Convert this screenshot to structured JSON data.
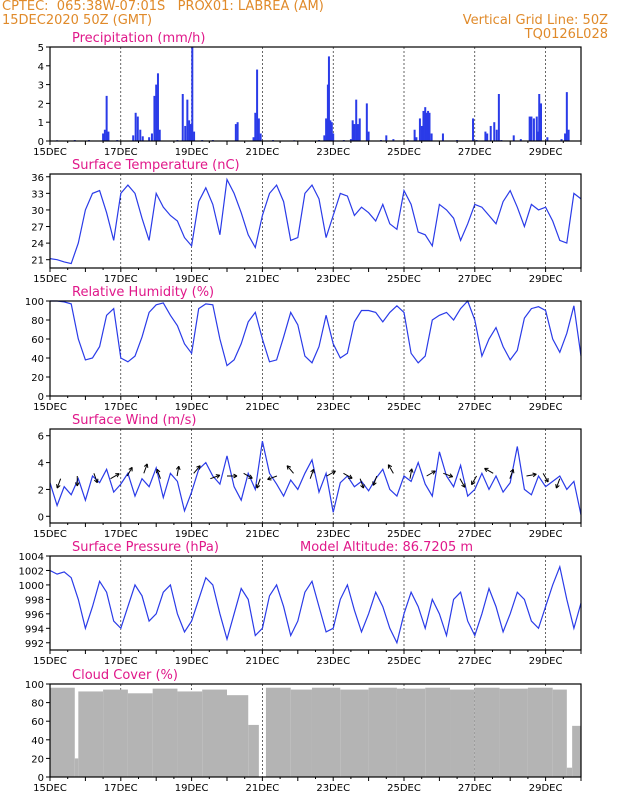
{
  "header": {
    "line1_left": "CPTEC:  065:38W-07:01S   PROX01: LABREA (AM)",
    "line2_left": "15DEC2020 50Z (GMT)",
    "line2_right": "Vertical Grid Line: 50Z",
    "line3_right": "TQ0126L028"
  },
  "colors": {
    "header": "#e08a2a",
    "title": "#e0188a",
    "series": "#2a3be8",
    "cloud": "#b4b4b4"
  },
  "extra_label": "Model Altitude: 86.7205 m",
  "x_ticks": [
    "15DEC",
    "17DEC",
    "19DEC",
    "21DEC",
    "23DEC",
    "25DEC",
    "27DEC",
    "29DEC"
  ],
  "chart_data": [
    {
      "type": "bar",
      "title": "Precipitation (mm/h)",
      "ylim": [
        0,
        5
      ],
      "yticks": [
        0,
        1,
        2,
        3,
        4,
        5
      ],
      "x_days": [
        15,
        30
      ],
      "bars": [
        [
          15.2,
          0.04
        ],
        [
          15.7,
          0.05
        ],
        [
          16.1,
          0.05
        ],
        [
          16.5,
          0.4
        ],
        [
          16.55,
          0.6
        ],
        [
          16.6,
          2.4
        ],
        [
          16.65,
          0.5
        ],
        [
          16.9,
          0.05
        ],
        [
          17.35,
          0.3
        ],
        [
          17.42,
          1.5
        ],
        [
          17.48,
          1.3
        ],
        [
          17.55,
          0.6
        ],
        [
          17.62,
          0.25
        ],
        [
          17.8,
          0.2
        ],
        [
          17.88,
          0.4
        ],
        [
          17.95,
          2.4
        ],
        [
          18.0,
          3.0
        ],
        [
          18.05,
          3.6
        ],
        [
          18.1,
          0.6
        ],
        [
          18.6,
          0.05
        ],
        [
          18.75,
          2.5
        ],
        [
          18.82,
          0.8
        ],
        [
          18.88,
          2.2
        ],
        [
          18.93,
          1.1
        ],
        [
          18.97,
          0.9
        ],
        [
          19.02,
          5.0
        ],
        [
          19.07,
          0.5
        ],
        [
          19.3,
          0.05
        ],
        [
          19.6,
          0.05
        ],
        [
          20.25,
          0.9
        ],
        [
          20.3,
          1.0
        ],
        [
          20.75,
          0.2
        ],
        [
          20.8,
          1.5
        ],
        [
          20.85,
          3.8
        ],
        [
          20.9,
          1.2
        ],
        [
          20.95,
          0.4
        ],
        [
          21.3,
          0.05
        ],
        [
          21.9,
          0.04
        ],
        [
          22.6,
          0.05
        ],
        [
          22.75,
          0.3
        ],
        [
          22.8,
          1.2
        ],
        [
          22.85,
          3.0
        ],
        [
          22.88,
          4.5
        ],
        [
          22.92,
          1.1
        ],
        [
          22.96,
          1.0
        ],
        [
          23.0,
          0.4
        ],
        [
          23.3,
          0.05
        ],
        [
          23.5,
          0.1
        ],
        [
          23.55,
          1.1
        ],
        [
          23.6,
          0.9
        ],
        [
          23.65,
          2.2
        ],
        [
          23.7,
          0.9
        ],
        [
          23.75,
          1.2
        ],
        [
          23.95,
          2.0
        ],
        [
          24.0,
          0.5
        ],
        [
          24.35,
          0.05
        ],
        [
          24.5,
          0.3
        ],
        [
          24.7,
          0.1
        ],
        [
          25.1,
          0.05
        ],
        [
          25.3,
          0.6
        ],
        [
          25.35,
          0.2
        ],
        [
          25.45,
          1.2
        ],
        [
          25.5,
          0.8
        ],
        [
          25.55,
          1.6
        ],
        [
          25.6,
          1.8
        ],
        [
          25.64,
          1.5
        ],
        [
          25.68,
          1.6
        ],
        [
          25.72,
          1.5
        ],
        [
          25.78,
          0.4
        ],
        [
          26.1,
          0.4
        ],
        [
          26.5,
          0.05
        ],
        [
          26.95,
          1.2
        ],
        [
          27.05,
          0.05
        ],
        [
          27.3,
          0.5
        ],
        [
          27.35,
          0.4
        ],
        [
          27.45,
          0.8
        ],
        [
          27.55,
          1.0
        ],
        [
          27.62,
          0.6
        ],
        [
          27.68,
          2.5
        ],
        [
          27.75,
          0.05
        ],
        [
          28.1,
          0.3
        ],
        [
          28.3,
          0.1
        ],
        [
          28.55,
          1.3
        ],
        [
          28.6,
          1.3
        ],
        [
          28.67,
          1.2
        ],
        [
          28.75,
          1.3
        ],
        [
          28.8,
          0.5
        ],
        [
          28.82,
          2.5
        ],
        [
          28.87,
          2.0
        ],
        [
          29.05,
          0.2
        ],
        [
          29.45,
          0.1
        ],
        [
          29.55,
          0.4
        ],
        [
          29.6,
          2.6
        ],
        [
          29.65,
          0.6
        ]
      ]
    },
    {
      "type": "line",
      "title": "Surface Temperature (nC)",
      "ylim": [
        19.5,
        36.5
      ],
      "yticks": [
        21,
        24,
        27,
        30,
        33,
        36
      ],
      "x": [
        15.0,
        15.2,
        15.4,
        15.6,
        15.8,
        16.0,
        16.2,
        16.4,
        16.6,
        16.8,
        17.0,
        17.2,
        17.4,
        17.6,
        17.8,
        18.0,
        18.2,
        18.4,
        18.6,
        18.8,
        19.0,
        19.2,
        19.4,
        19.6,
        19.8,
        20.0,
        20.2,
        20.4,
        20.6,
        20.8,
        21.0,
        21.2,
        21.4,
        21.6,
        21.8,
        22.0,
        22.2,
        22.4,
        22.6,
        22.8,
        23.0,
        23.2,
        23.4,
        23.6,
        23.8,
        24.0,
        24.2,
        24.4,
        24.6,
        24.8,
        25.0,
        25.2,
        25.4,
        25.6,
        25.8,
        26.0,
        26.2,
        26.4,
        26.6,
        26.8,
        27.0,
        27.2,
        27.4,
        27.6,
        27.8,
        28.0,
        28.2,
        28.4,
        28.6,
        28.8,
        29.0,
        29.2,
        29.4,
        29.6,
        29.8,
        30.0
      ],
      "y": [
        21.2,
        21.0,
        20.6,
        20.3,
        24.0,
        30.0,
        33.0,
        33.5,
        29.5,
        24.5,
        33.0,
        34.5,
        33.0,
        28.5,
        24.5,
        33.0,
        30.5,
        29.0,
        28.0,
        25.0,
        23.5,
        31.5,
        34.0,
        31.0,
        25.5,
        35.5,
        33.0,
        29.5,
        25.5,
        23.2,
        29.0,
        33.0,
        34.5,
        31.5,
        24.5,
        25.0,
        33.0,
        34.5,
        32.0,
        25.0,
        29.0,
        33.0,
        32.5,
        29.0,
        30.5,
        29.5,
        28.0,
        31.0,
        27.5,
        26.5,
        33.5,
        31.0,
        26.0,
        25.5,
        23.5,
        31.0,
        30.0,
        28.5,
        24.5,
        27.5,
        31.0,
        30.5,
        29.0,
        27.5,
        31.5,
        33.5,
        30.5,
        27.0,
        31.0,
        30.0,
        30.5,
        28.0,
        24.5,
        24.0,
        33.0,
        32.0
      ]
    },
    {
      "type": "line",
      "title": "Relative Humidity (%)",
      "ylim": [
        0,
        100
      ],
      "yticks": [
        0,
        20,
        40,
        60,
        80,
        100
      ],
      "x": [
        15.0,
        15.2,
        15.4,
        15.6,
        15.8,
        16.0,
        16.2,
        16.4,
        16.6,
        16.8,
        17.0,
        17.2,
        17.4,
        17.6,
        17.8,
        18.0,
        18.2,
        18.4,
        18.6,
        18.8,
        19.0,
        19.2,
        19.4,
        19.6,
        19.8,
        20.0,
        20.2,
        20.4,
        20.6,
        20.8,
        21.0,
        21.2,
        21.4,
        21.6,
        21.8,
        22.0,
        22.2,
        22.4,
        22.6,
        22.8,
        23.0,
        23.2,
        23.4,
        23.6,
        23.8,
        24.0,
        24.2,
        24.4,
        24.6,
        24.8,
        25.0,
        25.2,
        25.4,
        25.6,
        25.8,
        26.0,
        26.2,
        26.4,
        26.6,
        26.8,
        27.0,
        27.2,
        27.4,
        27.6,
        27.8,
        28.0,
        28.2,
        28.4,
        28.6,
        28.8,
        29.0,
        29.2,
        29.4,
        29.6,
        29.8,
        30.0
      ],
      "y": [
        100,
        100,
        99,
        97,
        60,
        38,
        40,
        52,
        85,
        92,
        40,
        36,
        42,
        62,
        88,
        96,
        98,
        85,
        74,
        55,
        45,
        92,
        97,
        96,
        60,
        32,
        38,
        55,
        78,
        88,
        60,
        36,
        38,
        62,
        88,
        75,
        42,
        35,
        52,
        85,
        55,
        40,
        45,
        78,
        90,
        90,
        88,
        78,
        88,
        95,
        88,
        45,
        35,
        42,
        80,
        85,
        88,
        80,
        92,
        100,
        80,
        42,
        60,
        72,
        52,
        38,
        48,
        82,
        92,
        94,
        90,
        60,
        46,
        66,
        95,
        42
      ]
    },
    {
      "type": "line",
      "title": "Surface Wind (m/s)",
      "ylim": [
        -0.5,
        6.5
      ],
      "yticks": [
        0,
        2,
        4,
        6
      ],
      "x": [
        15.0,
        15.2,
        15.4,
        15.6,
        15.8,
        16.0,
        16.2,
        16.4,
        16.6,
        16.8,
        17.0,
        17.2,
        17.4,
        17.6,
        17.8,
        18.0,
        18.2,
        18.4,
        18.6,
        18.8,
        19.0,
        19.2,
        19.4,
        19.6,
        19.8,
        20.0,
        20.2,
        20.4,
        20.6,
        20.8,
        21.0,
        21.2,
        21.4,
        21.6,
        21.8,
        22.0,
        22.2,
        22.4,
        22.6,
        22.8,
        23.0,
        23.2,
        23.4,
        23.6,
        23.8,
        24.0,
        24.2,
        24.4,
        24.6,
        24.8,
        25.0,
        25.2,
        25.4,
        25.6,
        25.8,
        26.0,
        26.2,
        26.4,
        26.6,
        26.8,
        27.0,
        27.2,
        27.4,
        27.6,
        27.8,
        28.0,
        28.2,
        28.4,
        28.6,
        28.8,
        29.0,
        29.2,
        29.4,
        29.6,
        29.8,
        30.0
      ],
      "y": [
        2.5,
        0.8,
        2.2,
        1.6,
        2.8,
        1.2,
        3.0,
        2.5,
        3.5,
        1.8,
        2.4,
        3.2,
        1.5,
        2.8,
        2.2,
        3.6,
        1.4,
        3.2,
        2.6,
        0.4,
        1.8,
        3.5,
        4.0,
        3.0,
        2.4,
        4.5,
        2.2,
        1.2,
        3.2,
        2.0,
        5.6,
        3.2,
        2.4,
        1.5,
        2.7,
        2.0,
        3.2,
        4.2,
        1.8,
        3.2,
        0.3,
        2.5,
        3.0,
        2.2,
        2.6,
        1.9,
        2.8,
        3.5,
        2.0,
        1.5,
        3.0,
        2.6,
        4.0,
        2.4,
        1.5,
        4.8,
        3.0,
        2.2,
        3.8,
        1.5,
        2.0,
        3.2,
        2.0,
        3.0,
        1.8,
        2.5,
        5.2,
        2.0,
        1.6,
        3.0,
        2.2,
        2.6,
        3.0,
        2.0,
        2.6,
        0.1
      ]
    },
    {
      "type": "line",
      "title": "Surface Pressure (hPa)",
      "ylim": [
        991,
        1004
      ],
      "yticks": [
        992,
        994,
        996,
        998,
        1000,
        1002,
        1004
      ],
      "x": [
        15.0,
        15.2,
        15.4,
        15.6,
        15.8,
        16.0,
        16.2,
        16.4,
        16.6,
        16.8,
        17.0,
        17.2,
        17.4,
        17.6,
        17.8,
        18.0,
        18.2,
        18.4,
        18.6,
        18.8,
        19.0,
        19.2,
        19.4,
        19.6,
        19.8,
        20.0,
        20.2,
        20.4,
        20.6,
        20.8,
        21.0,
        21.2,
        21.4,
        21.6,
        21.8,
        22.0,
        22.2,
        22.4,
        22.6,
        22.8,
        23.0,
        23.2,
        23.4,
        23.6,
        23.8,
        24.0,
        24.2,
        24.4,
        24.6,
        24.8,
        25.0,
        25.2,
        25.4,
        25.6,
        25.8,
        26.0,
        26.2,
        26.4,
        26.6,
        26.8,
        27.0,
        27.2,
        27.4,
        27.6,
        27.8,
        28.0,
        28.2,
        28.4,
        28.6,
        28.8,
        29.0,
        29.2,
        29.4,
        29.6,
        29.8,
        30.0
      ],
      "y": [
        1002,
        1001.5,
        1001.8,
        1001,
        998,
        994,
        997,
        1000.5,
        999,
        995,
        994,
        997,
        1000,
        998.5,
        995,
        996,
        999,
        1000,
        996,
        993.5,
        995,
        998,
        1001,
        1000,
        996,
        992.5,
        996,
        999.5,
        998,
        993,
        994,
        998.5,
        1000,
        997,
        993,
        995,
        999,
        1000.5,
        997,
        993.5,
        994,
        998,
        1000,
        996.5,
        993.5,
        996,
        999,
        997,
        994,
        992,
        996,
        999,
        997,
        994,
        998,
        996,
        993,
        998,
        999,
        995,
        993,
        996,
        999.5,
        997,
        993.5,
        996,
        999,
        998,
        995,
        994,
        997,
        1000,
        1002.5,
        998,
        994,
        997.5
      ]
    },
    {
      "type": "bar",
      "title": "Cloud Cover (%)",
      "ylim": [
        0,
        100
      ],
      "yticks": [
        0,
        20,
        40,
        60,
        80,
        100
      ],
      "x_days": [
        15,
        30
      ],
      "segments": [
        {
          "from": 15.0,
          "to": 15.7,
          "value": 96
        },
        {
          "from": 15.7,
          "to": 15.8,
          "value": 20
        },
        {
          "from": 15.8,
          "to": 16.5,
          "value": 92
        },
        {
          "from": 16.5,
          "to": 17.2,
          "value": 94
        },
        {
          "from": 17.2,
          "to": 17.9,
          "value": 90
        },
        {
          "from": 17.9,
          "to": 18.6,
          "value": 95
        },
        {
          "from": 18.6,
          "to": 19.3,
          "value": 92
        },
        {
          "from": 19.3,
          "to": 20.0,
          "value": 94
        },
        {
          "from": 20.0,
          "to": 20.6,
          "value": 88
        },
        {
          "from": 20.6,
          "to": 20.9,
          "value": 56
        },
        {
          "from": 20.9,
          "to": 21.1,
          "value": 0
        },
        {
          "from": 21.1,
          "to": 21.8,
          "value": 96
        },
        {
          "from": 21.8,
          "to": 22.4,
          "value": 94
        },
        {
          "from": 22.4,
          "to": 23.2,
          "value": 96
        },
        {
          "from": 23.2,
          "to": 24.0,
          "value": 94
        },
        {
          "from": 24.0,
          "to": 24.8,
          "value": 96
        },
        {
          "from": 24.8,
          "to": 25.6,
          "value": 95
        },
        {
          "from": 25.6,
          "to": 26.3,
          "value": 96
        },
        {
          "from": 26.3,
          "to": 27.0,
          "value": 94
        },
        {
          "from": 27.0,
          "to": 27.7,
          "value": 96
        },
        {
          "from": 27.7,
          "to": 28.5,
          "value": 95
        },
        {
          "from": 28.5,
          "to": 29.2,
          "value": 96
        },
        {
          "from": 29.2,
          "to": 29.6,
          "value": 94
        },
        {
          "from": 29.6,
          "to": 29.75,
          "value": 10
        },
        {
          "from": 29.75,
          "to": 30.0,
          "value": 55
        }
      ]
    }
  ]
}
